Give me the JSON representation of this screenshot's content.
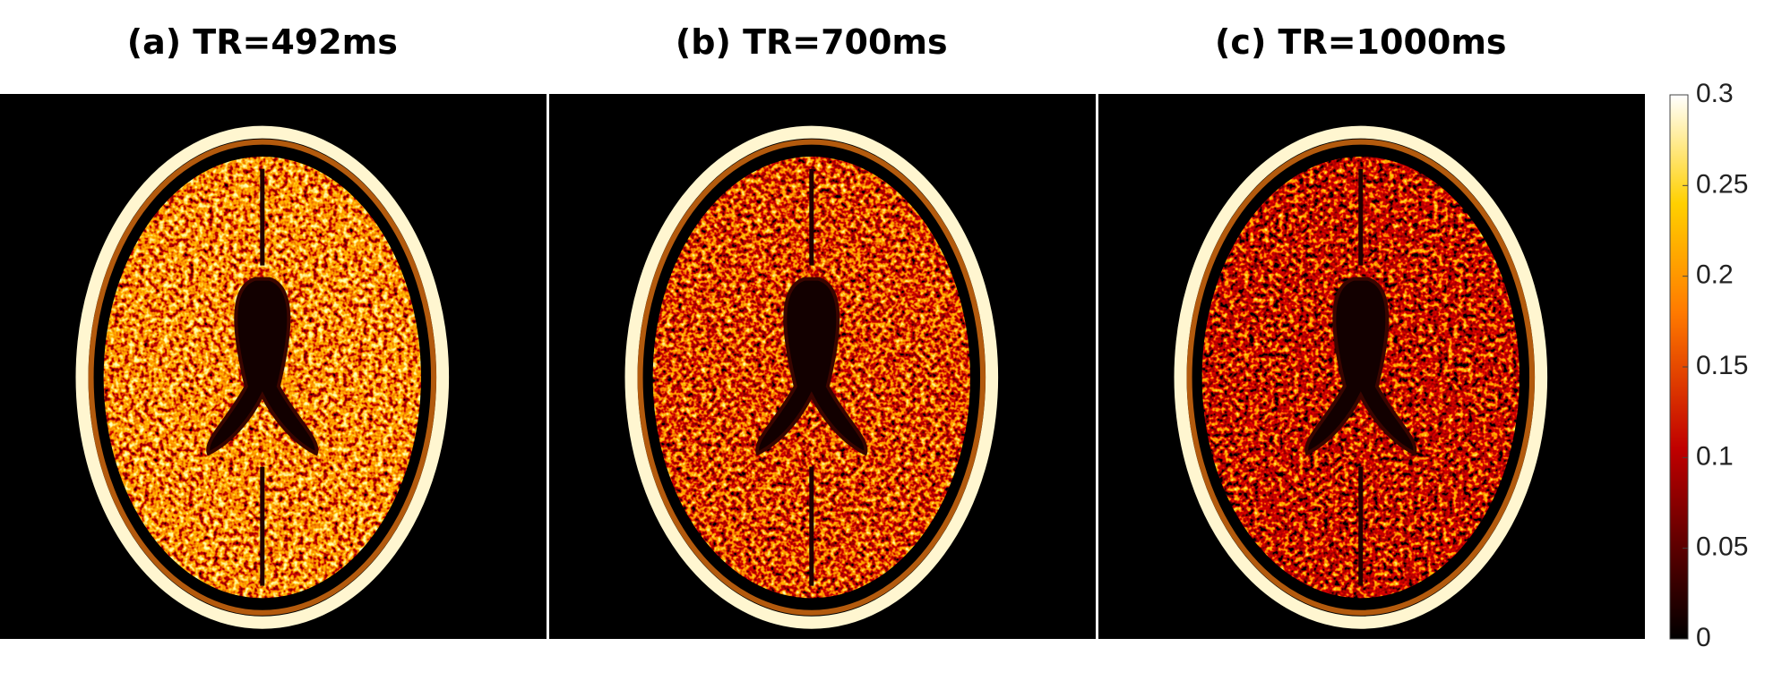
{
  "panels": [
    {
      "title": "(a) TR=492ms"
    },
    {
      "title": "(b) TR=700ms"
    },
    {
      "title": "(c) TR=1000ms"
    }
  ],
  "colorbar": {
    "lim": [
      0,
      0.3
    ],
    "ticks": [
      0,
      0.05,
      0.1,
      0.15,
      0.2,
      0.25,
      0.3
    ]
  }
}
